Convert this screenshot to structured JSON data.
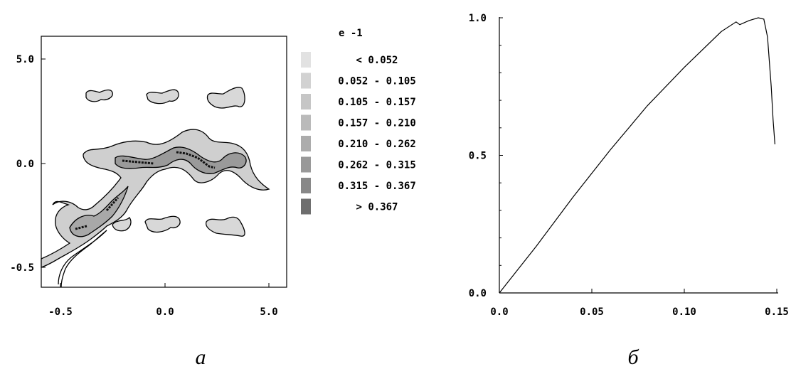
{
  "chart_data": [
    {
      "type": "heatmap",
      "x_ticks": [
        "-0.5",
        "0.0",
        "5.0"
      ],
      "y_ticks": [
        "5.0",
        "0.0",
        "-0.5"
      ],
      "legend_title": "e -1",
      "legend": [
        {
          "label": "< 0.052",
          "color": "#e2e2e2"
        },
        {
          "label": "0.052 - 0.105",
          "color": "#d2d2d2"
        },
        {
          "label": "0.105 - 0.157",
          "color": "#c6c6c6"
        },
        {
          "label": "0.157 - 0.210",
          "color": "#bababa"
        },
        {
          "label": "0.210 - 0.262",
          "color": "#acacac"
        },
        {
          "label": "0.262 - 0.315",
          "color": "#999999"
        },
        {
          "label": "0.315 - 0.367",
          "color": "#888888"
        },
        {
          "label": "> 0.367",
          "color": "#6e6e6e"
        }
      ],
      "caption": "a"
    },
    {
      "type": "line",
      "xlim": [
        0,
        0.15
      ],
      "ylim": [
        0,
        1.0
      ],
      "x_ticks": [
        "0.0",
        "0.05",
        "0.10",
        "0.15"
      ],
      "y_ticks": [
        "0.0",
        "0.5",
        "1.0"
      ],
      "series": [
        {
          "x": [
            0.0,
            0.02,
            0.04,
            0.06,
            0.08,
            0.1,
            0.12,
            0.128,
            0.13,
            0.135,
            0.14,
            0.143,
            0.145,
            0.147,
            0.148,
            0.149
          ],
          "y": [
            0.0,
            0.17,
            0.35,
            0.52,
            0.68,
            0.82,
            0.95,
            0.985,
            0.975,
            0.99,
            1.0,
            0.995,
            0.93,
            0.75,
            0.63,
            0.54
          ]
        }
      ],
      "caption": "б"
    }
  ]
}
